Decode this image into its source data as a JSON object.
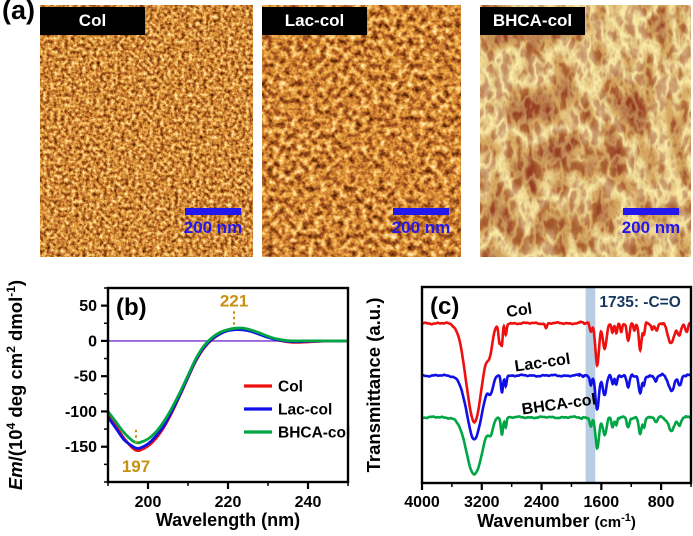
{
  "panel_a": {
    "label": "(a)",
    "images": [
      {
        "name": "Col",
        "scale_bar": "200 nm",
        "texture": "granular"
      },
      {
        "name": "Lac-col",
        "scale_bar": "200 nm",
        "texture": "granular"
      },
      {
        "name": "BHCA-col",
        "scale_bar": "200 nm",
        "texture": "fibrous"
      }
    ],
    "colors": {
      "label_bg": "#000000",
      "label_text": "#ffffff",
      "scale_bar_blue": "#2417ee"
    }
  },
  "chart_data": [
    {
      "panel": "(b)",
      "type": "line",
      "xlabel": "Wavelength (nm)",
      "ylabel": "Em/(10⁴ deg cm² dmol⁻¹)",
      "ylabel_parts": [
        {
          "t": "Em",
          "italic": true
        },
        {
          "t": "/(10"
        },
        {
          "t": "4",
          "sup": true
        },
        {
          "t": " deg cm"
        },
        {
          "t": "2",
          "sup": true
        },
        {
          "t": " dmol"
        },
        {
          "t": "-1",
          "sup": true
        },
        {
          "t": ")"
        }
      ],
      "xlim": [
        190,
        250
      ],
      "ylim": [
        -200,
        75
      ],
      "xticks": [
        200,
        220,
        240
      ],
      "x_minor_step": 10,
      "yticks": [
        50,
        0,
        -50,
        -100,
        -150
      ],
      "y_minor_step": 25,
      "grid": false,
      "axis_color": "#000000",
      "zero_line_color": "#8a4fd6",
      "annotation_color": "#c6920f",
      "annotations": [
        {
          "text": "221",
          "x": 221.5,
          "type": "peak"
        },
        {
          "text": "197",
          "x": 197,
          "type": "trough"
        }
      ],
      "legend": {
        "position": "center-right",
        "entries": [
          "Col",
          "Lac-col",
          "BHCA-col"
        ]
      },
      "series": [
        {
          "name": "Col",
          "color": "#ee0f0f",
          "points": [
            [
              190,
              -104
            ],
            [
              192,
              -121
            ],
            [
              194,
              -138
            ],
            [
              196,
              -151
            ],
            [
              197,
              -155
            ],
            [
              198,
              -155
            ],
            [
              200,
              -149
            ],
            [
              202,
              -138
            ],
            [
              204,
              -122
            ],
            [
              206,
              -101
            ],
            [
              208,
              -77
            ],
            [
              210,
              -52
            ],
            [
              212,
              -28
            ],
            [
              214,
              -10
            ],
            [
              216,
              2
            ],
            [
              218,
              10
            ],
            [
              220,
              15
            ],
            [
              222,
              17
            ],
            [
              224,
              16.5
            ],
            [
              226,
              13.5
            ],
            [
              228,
              9.5
            ],
            [
              230,
              5.5
            ],
            [
              232,
              2
            ],
            [
              234,
              -0.5
            ],
            [
              236,
              -2
            ],
            [
              238,
              -2
            ],
            [
              240,
              -1.5
            ],
            [
              243,
              -0.5
            ],
            [
              246,
              0
            ],
            [
              250,
              0
            ]
          ]
        },
        {
          "name": "Lac-col",
          "color": "#0f0fe6",
          "points": [
            [
              190,
              -108
            ],
            [
              192,
              -124
            ],
            [
              194,
              -140
            ],
            [
              196,
              -149
            ],
            [
              197,
              -152
            ],
            [
              198,
              -152
            ],
            [
              200,
              -146
            ],
            [
              202,
              -135
            ],
            [
              204,
              -120
            ],
            [
              206,
              -99
            ],
            [
              208,
              -76
            ],
            [
              210,
              -51
            ],
            [
              212,
              -27
            ],
            [
              214,
              -9
            ],
            [
              216,
              2.5
            ],
            [
              218,
              10
            ],
            [
              220,
              14.5
            ],
            [
              222,
              16
            ],
            [
              224,
              15.5
            ],
            [
              226,
              13
            ],
            [
              228,
              9
            ],
            [
              230,
              5
            ],
            [
              232,
              2
            ],
            [
              234,
              0
            ],
            [
              236,
              -1
            ],
            [
              238,
              -1
            ],
            [
              240,
              -0.5
            ],
            [
              243,
              0
            ],
            [
              246,
              0
            ],
            [
              250,
              0
            ]
          ]
        },
        {
          "name": "BHCA-col",
          "color": "#00a643",
          "points": [
            [
              190,
              -100
            ],
            [
              192,
              -115
            ],
            [
              194,
              -130
            ],
            [
              196,
              -141
            ],
            [
              197,
              -144
            ],
            [
              198,
              -144
            ],
            [
              200,
              -139
            ],
            [
              202,
              -129
            ],
            [
              204,
              -114
            ],
            [
              206,
              -95
            ],
            [
              208,
              -73
            ],
            [
              210,
              -49
            ],
            [
              212,
              -25
            ],
            [
              214,
              -7
            ],
            [
              216,
              4.5
            ],
            [
              218,
              12
            ],
            [
              220,
              16
            ],
            [
              222,
              18
            ],
            [
              224,
              18
            ],
            [
              226,
              15
            ],
            [
              228,
              11
            ],
            [
              230,
              6.5
            ],
            [
              232,
              3
            ],
            [
              234,
              1
            ],
            [
              236,
              0
            ],
            [
              238,
              0
            ],
            [
              240,
              0
            ],
            [
              243,
              0
            ],
            [
              246,
              0
            ],
            [
              250,
              0
            ]
          ]
        }
      ]
    },
    {
      "panel": "(c)",
      "type": "line",
      "xlabel": "Wavenumber (cm⁻¹)",
      "xlabel_parts": [
        {
          "t": "Wavenumber "
        },
        {
          "t": "(cm",
          "small": true
        },
        {
          "t": "-1",
          "sup": true
        },
        {
          "t": ")",
          "small": true
        }
      ],
      "ylabel": "Transmittance (a.u.)",
      "xlim": [
        4000,
        400
      ],
      "xticks": [
        4000,
        3200,
        2400,
        1600,
        800
      ],
      "x_minor_step": 400,
      "grid": false,
      "highlight_band": {
        "from": 1810,
        "to": 1680,
        "color": "#b8cce4",
        "label": "1735: -C=O",
        "label_color": "#17375e"
      },
      "series": [
        {
          "name": "Col",
          "color": "#ee0f0f",
          "baseline": 0.185,
          "label_x": 2690,
          "peaks": [
            [
              3300,
              150,
              0.505
            ],
            [
              3090,
              50,
              0.1
            ],
            [
              2960,
              22,
              0.1
            ],
            [
              2930,
              16,
              0.1
            ],
            [
              2880,
              18,
              0.06
            ],
            [
              2340,
              18,
              0.025
            ],
            [
              1740,
              20,
              0.04
            ],
            [
              1655,
              36,
              0.21
            ],
            [
              1555,
              36,
              0.125
            ],
            [
              1450,
              20,
              0.055
            ],
            [
              1400,
              18,
              0.05
            ],
            [
              1335,
              16,
              0.045
            ],
            [
              1240,
              26,
              0.085
            ],
            [
              1160,
              18,
              0.04
            ],
            [
              1080,
              26,
              0.135
            ],
            [
              1030,
              18,
              0.06
            ],
            [
              920,
              20,
              0.03
            ],
            [
              860,
              25,
              0.035
            ],
            [
              670,
              60,
              0.1
            ],
            [
              560,
              35,
              0.06
            ],
            [
              460,
              25,
              0.04
            ]
          ]
        },
        {
          "name": "Lac-col",
          "color": "#0f0fe6",
          "baseline": 0.452,
          "label_x": 2380,
          "peaks": [
            [
              3300,
              140,
              0.325
            ],
            [
              3080,
              45,
              0.07
            ],
            [
              2930,
              20,
              0.085
            ],
            [
              2880,
              16,
              0.05
            ],
            [
              1740,
              20,
              0.045
            ],
            [
              1655,
              34,
              0.175
            ],
            [
              1555,
              34,
              0.1
            ],
            [
              1450,
              20,
              0.045
            ],
            [
              1400,
              18,
              0.04
            ],
            [
              1240,
              26,
              0.06
            ],
            [
              1080,
              28,
              0.09
            ],
            [
              1030,
              18,
              0.05
            ],
            [
              870,
              25,
              0.03
            ],
            [
              660,
              55,
              0.075
            ],
            [
              550,
              30,
              0.045
            ]
          ]
        },
        {
          "name": "BHCA-col",
          "color": "#00a643",
          "baseline": 0.665,
          "label_x": 2160,
          "peaks": [
            [
              3300,
              150,
              0.29
            ],
            [
              3080,
              45,
              0.06
            ],
            [
              2930,
              20,
              0.085
            ],
            [
              2880,
              16,
              0.05
            ],
            [
              1740,
              20,
              0.05
            ],
            [
              1655,
              34,
              0.16
            ],
            [
              1555,
              34,
              0.095
            ],
            [
              1450,
              20,
              0.045
            ],
            [
              1400,
              18,
              0.04
            ],
            [
              1240,
              26,
              0.055
            ],
            [
              1080,
              28,
              0.085
            ],
            [
              1030,
              18,
              0.045
            ],
            [
              870,
              25,
              0.03
            ],
            [
              660,
              55,
              0.07
            ],
            [
              550,
              30,
              0.04
            ]
          ]
        }
      ]
    }
  ]
}
